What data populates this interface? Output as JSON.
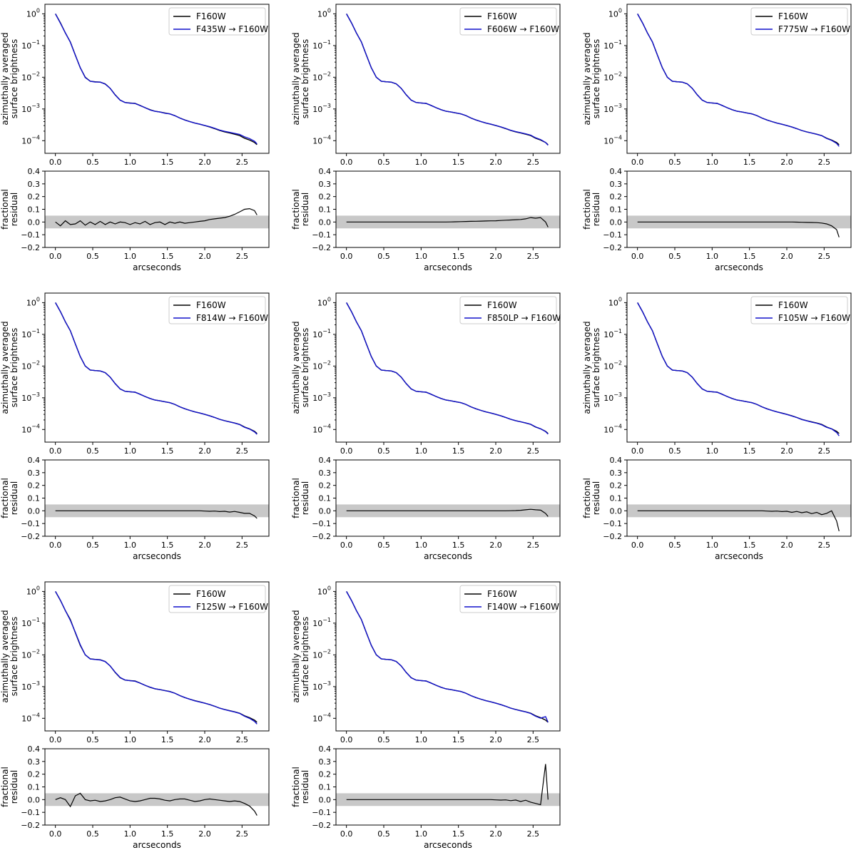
{
  "figure": {
    "description_free": true,
    "colors": {
      "reference_line": "#000000",
      "converted_line": "#1111cc",
      "residual_line": "#000000",
      "tolerance_band": "#c8c8c8"
    },
    "shared_x": [
      0.0,
      0.067,
      0.133,
      0.2,
      0.267,
      0.333,
      0.4,
      0.467,
      0.533,
      0.6,
      0.667,
      0.733,
      0.8,
      0.867,
      0.933,
      1.0,
      1.067,
      1.133,
      1.2,
      1.267,
      1.333,
      1.4,
      1.467,
      1.533,
      1.6,
      1.667,
      1.733,
      1.8,
      1.867,
      1.933,
      2.0,
      2.067,
      2.133,
      2.2,
      2.267,
      2.333,
      2.4,
      2.467,
      2.533,
      2.6,
      2.667,
      2.7
    ],
    "reference_profile": [
      1.0,
      0.52,
      0.25,
      0.13,
      0.05,
      0.02,
      0.01,
      0.0075,
      0.0072,
      0.007,
      0.0062,
      0.0045,
      0.0028,
      0.0019,
      0.0016,
      0.00155,
      0.0015,
      0.0013,
      0.0011,
      0.00095,
      0.00085,
      0.0008,
      0.00075,
      0.0007,
      0.00062,
      0.00052,
      0.00045,
      0.0004,
      0.00036,
      0.00033,
      0.0003,
      0.00027,
      0.00024,
      0.00021,
      0.00019,
      0.000175,
      0.00016,
      0.000145,
      0.00012,
      0.000105,
      8.8e-05,
      7.5e-05
    ],
    "x_label": "arcseconds",
    "top_y_label_line1": "azimuthally averaged",
    "top_y_label_line2": "surface brightness",
    "bottom_y_label_line1": "fractional",
    "bottom_y_label_line2": "residual",
    "x_ticks": [
      "0.0",
      "0.5",
      "1.0",
      "1.5",
      "2.0",
      "2.5"
    ],
    "x_tick_values": [
      0.0,
      0.5,
      1.0,
      1.5,
      2.0,
      2.5
    ],
    "top_y_ticks": [
      {
        "base": "10",
        "exp": "0"
      },
      {
        "base": "10",
        "exp": "−1"
      },
      {
        "base": "10",
        "exp": "−2"
      },
      {
        "base": "10",
        "exp": "−3"
      },
      {
        "base": "10",
        "exp": "−4"
      }
    ],
    "top_y_tick_exps": [
      0,
      -1,
      -2,
      -3,
      -4
    ],
    "bottom_y_ticks": [
      "0.4",
      "0.3",
      "0.2",
      "0.1",
      "0.0",
      "−0.1",
      "−0.2"
    ],
    "bottom_y_tick_values": [
      0.4,
      0.3,
      0.2,
      0.1,
      0.0,
      -0.1,
      -0.2
    ],
    "band": [
      -0.05,
      0.05
    ]
  },
  "chart_data": [
    {
      "type": "line",
      "legend": [
        "F160W",
        "F435W → F160W"
      ],
      "xlabel": "arcseconds",
      "xlim": [
        -0.14,
        2.86
      ],
      "ylim_top": [
        4e-05,
        2
      ],
      "ylim_bottom": [
        -0.2,
        0.4
      ],
      "residual": [
        0.0,
        -0.03,
        0.01,
        -0.02,
        -0.015,
        0.01,
        -0.025,
        0.0,
        -0.02,
        0.005,
        -0.02,
        0.0,
        -0.015,
        0.0,
        -0.005,
        -0.02,
        -0.005,
        -0.015,
        0.005,
        -0.02,
        -0.005,
        0.0,
        -0.02,
        0.0,
        -0.01,
        0.0,
        -0.01,
        -0.005,
        0.0,
        0.005,
        0.01,
        0.02,
        0.025,
        0.03,
        0.035,
        0.045,
        0.06,
        0.08,
        0.1,
        0.105,
        0.09,
        0.055
      ]
    },
    {
      "type": "line",
      "legend": [
        "F160W",
        "F606W → F160W"
      ],
      "xlabel": "arcseconds",
      "xlim": [
        -0.14,
        2.86
      ],
      "ylim_top": [
        4e-05,
        2
      ],
      "ylim_bottom": [
        -0.2,
        0.4
      ],
      "residual": [
        0.0,
        0.0,
        0.0,
        0.0,
        0.0,
        0.0,
        0.0,
        0.0,
        0.0,
        0.0,
        0.0,
        0.0,
        0.0,
        0.0,
        0.0,
        0.0,
        0.0,
        0.0,
        0.0,
        0.0,
        0.0,
        0.001,
        0.002,
        0.003,
        0.004,
        0.005,
        0.006,
        0.007,
        0.008,
        0.009,
        0.01,
        0.012,
        0.014,
        0.016,
        0.018,
        0.02,
        0.025,
        0.035,
        0.03,
        0.035,
        0.0,
        -0.04
      ]
    },
    {
      "type": "line",
      "legend": [
        "F160W",
        "F775W → F160W"
      ],
      "xlabel": "arcseconds",
      "xlim": [
        -0.14,
        2.86
      ],
      "ylim_top": [
        4e-05,
        2
      ],
      "ylim_bottom": [
        -0.2,
        0.4
      ],
      "residual": [
        0.0,
        0.0,
        0.0,
        0.0,
        0.0,
        0.0,
        0.0,
        0.0,
        0.0,
        0.0,
        0.0,
        0.0,
        0.0,
        0.0,
        0.0,
        0.0,
        0.0,
        0.0,
        0.0,
        0.0,
        0.0,
        0.0,
        0.0,
        0.0,
        0.0,
        0.0,
        0.0,
        0.0,
        0.0,
        0.0,
        0.0,
        0.0,
        -0.001,
        -0.002,
        -0.003,
        -0.004,
        -0.005,
        -0.008,
        -0.015,
        -0.03,
        -0.06,
        -0.12
      ]
    },
    {
      "type": "line",
      "legend": [
        "F160W",
        "F814W → F160W"
      ],
      "xlabel": "arcseconds",
      "xlim": [
        -0.14,
        2.86
      ],
      "ylim_top": [
        4e-05,
        2
      ],
      "ylim_bottom": [
        -0.2,
        0.4
      ],
      "residual": [
        0.0,
        0.0,
        0.0,
        0.0,
        0.0,
        0.0,
        0.0,
        0.0,
        0.0,
        0.0,
        0.0,
        0.0,
        0.0,
        0.0,
        0.0,
        0.0,
        0.0,
        0.0,
        0.0,
        0.0,
        0.0,
        0.0,
        0.0,
        0.0,
        0.0,
        0.0,
        0.0,
        0.0,
        0.0,
        0.0,
        -0.002,
        -0.004,
        -0.002,
        -0.006,
        -0.004,
        -0.01,
        -0.005,
        -0.012,
        -0.02,
        -0.02,
        -0.04,
        -0.06
      ]
    },
    {
      "type": "line",
      "legend": [
        "F160W",
        "F850LP → F160W"
      ],
      "xlabel": "arcseconds",
      "xlim": [
        -0.14,
        2.86
      ],
      "ylim_top": [
        4e-05,
        2
      ],
      "ylim_bottom": [
        -0.2,
        0.4
      ],
      "residual": [
        0.0,
        0.0,
        0.0,
        0.0,
        0.0,
        0.0,
        0.0,
        0.0,
        0.0,
        0.0,
        0.0,
        0.0,
        0.0,
        0.0,
        0.0,
        0.0,
        0.0,
        0.0,
        0.0,
        0.0,
        0.0,
        0.0,
        0.0,
        0.0,
        0.0,
        0.0,
        0.0,
        0.0,
        0.0,
        0.0,
        0.0,
        0.0,
        0.0,
        0.001,
        0.002,
        0.004,
        0.008,
        0.012,
        0.008,
        0.005,
        -0.02,
        -0.045
      ]
    },
    {
      "type": "line",
      "legend": [
        "F160W",
        "F105W → F160W"
      ],
      "xlabel": "arcseconds",
      "xlim": [
        -0.14,
        2.86
      ],
      "ylim_top": [
        4e-05,
        2
      ],
      "ylim_bottom": [
        -0.2,
        0.4
      ],
      "residual": [
        0.0,
        0.0,
        0.0,
        0.0,
        0.0,
        0.0,
        0.0,
        0.0,
        0.0,
        0.0,
        0.0,
        0.0,
        0.0,
        0.0,
        0.0,
        0.0,
        0.0,
        0.0,
        0.0,
        0.0,
        0.0,
        0.0,
        0.0,
        0.0,
        0.0,
        0.0,
        -0.002,
        -0.004,
        -0.002,
        -0.006,
        -0.004,
        -0.012,
        -0.005,
        -0.015,
        -0.008,
        -0.022,
        -0.012,
        -0.03,
        -0.02,
        0.0,
        -0.08,
        -0.16
      ]
    },
    {
      "type": "line",
      "legend": [
        "F160W",
        "F125W → F160W"
      ],
      "xlabel": "arcseconds",
      "xlim": [
        -0.14,
        2.86
      ],
      "ylim_top": [
        4e-05,
        2
      ],
      "ylim_bottom": [
        -0.2,
        0.4
      ],
      "residual": [
        0.0,
        0.015,
        0.0,
        -0.055,
        0.03,
        0.05,
        0.0,
        -0.01,
        -0.005,
        -0.015,
        -0.01,
        0.0,
        0.015,
        0.02,
        0.005,
        -0.01,
        -0.015,
        -0.01,
        0.0,
        0.01,
        0.01,
        0.005,
        -0.005,
        -0.01,
        0.0,
        0.005,
        0.005,
        -0.005,
        -0.015,
        -0.01,
        0.0,
        0.005,
        0.0,
        -0.005,
        -0.01,
        -0.015,
        -0.01,
        -0.015,
        -0.03,
        -0.05,
        -0.09,
        -0.125
      ]
    },
    {
      "type": "line",
      "legend": [
        "F160W",
        "F140W → F160W"
      ],
      "xlabel": "arcseconds",
      "xlim": [
        -0.14,
        2.86
      ],
      "ylim_top": [
        4e-05,
        2
      ],
      "ylim_bottom": [
        -0.2,
        0.4
      ],
      "residual": [
        0.0,
        0.0,
        0.0,
        0.0,
        0.0,
        0.0,
        0.0,
        0.0,
        0.0,
        0.0,
        0.0,
        0.0,
        0.0,
        0.0,
        0.0,
        0.0,
        0.0,
        0.0,
        0.0,
        0.0,
        0.0,
        0.0,
        0.0,
        0.0,
        0.0,
        0.0,
        0.0,
        0.0,
        0.0,
        0.0,
        -0.002,
        -0.004,
        -0.002,
        -0.008,
        -0.003,
        -0.015,
        -0.005,
        -0.02,
        -0.03,
        -0.04,
        0.28,
        0.0
      ]
    }
  ]
}
